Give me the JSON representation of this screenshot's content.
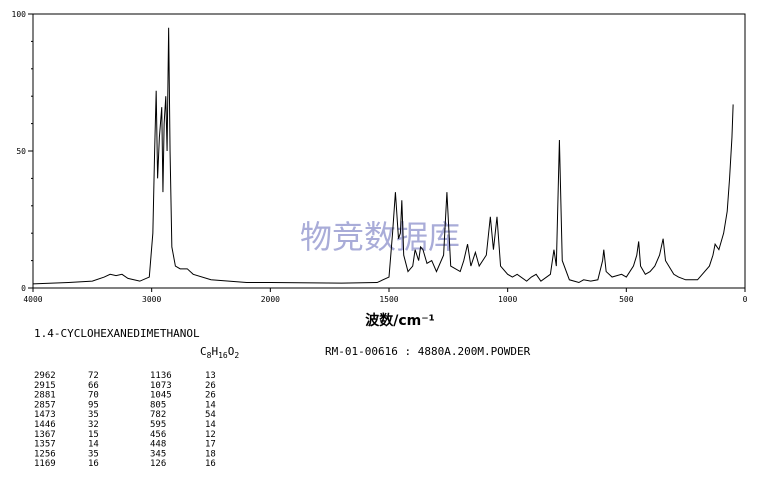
{
  "chart_data": {
    "type": "line",
    "xlabel": "波数/cm⁻¹",
    "watermark": "物竞数据库",
    "xlim": [
      4000,
      0
    ],
    "x_scale_change_at": 2000,
    "x_scale_ratio": 2,
    "ylim": [
      0,
      100
    ],
    "xticks": [
      4000,
      3000,
      2000,
      1500,
      1000,
      500,
      0
    ],
    "yticks": [
      0,
      50,
      100
    ],
    "yminorticks": [
      10,
      20,
      30,
      40,
      60,
      70,
      80,
      90
    ],
    "color": "#000000",
    "series": [
      {
        "x": [
          4000,
          3700,
          3500,
          3400,
          3350,
          3300,
          3250,
          3200,
          3100,
          3020,
          2990,
          2975,
          2962,
          2950,
          2935,
          2915,
          2905,
          2895,
          2881,
          2870,
          2857,
          2845,
          2830,
          2800,
          2760,
          2700,
          2650,
          2500,
          2200,
          2000,
          1700,
          1550,
          1500,
          1485,
          1473,
          1460,
          1452,
          1446,
          1438,
          1420,
          1400,
          1390,
          1375,
          1367,
          1357,
          1340,
          1320,
          1300,
          1270,
          1256,
          1240,
          1200,
          1185,
          1169,
          1155,
          1136,
          1120,
          1090,
          1073,
          1060,
          1045,
          1030,
          1000,
          980,
          960,
          920,
          900,
          880,
          860,
          820,
          805,
          795,
          782,
          770,
          740,
          700,
          680,
          650,
          620,
          600,
          595,
          585,
          560,
          520,
          500,
          470,
          456,
          448,
          440,
          420,
          400,
          380,
          360,
          345,
          335,
          300,
          280,
          250,
          200,
          150,
          135,
          126,
          110,
          90,
          75,
          65,
          55,
          50
        ],
        "values": [
          1.5,
          2,
          2.5,
          4,
          5,
          4.5,
          5,
          3.5,
          2.5,
          4,
          20,
          50,
          72,
          40,
          55,
          66,
          35,
          60,
          70,
          50,
          95,
          50,
          15,
          8,
          7,
          7,
          5,
          3,
          2,
          2,
          1.8,
          2,
          4,
          20,
          35,
          18,
          20,
          32,
          12,
          6,
          8,
          14,
          10,
          15,
          14,
          9,
          10,
          6,
          12,
          35,
          8,
          6,
          10,
          16,
          8,
          13,
          8,
          12,
          26,
          14,
          26,
          8,
          5,
          4,
          5,
          2.5,
          4,
          5,
          2.5,
          5,
          14,
          8,
          54,
          10,
          3,
          2,
          3,
          2.5,
          3,
          10,
          14,
          6,
          4,
          5,
          4,
          8,
          12,
          17,
          8,
          5,
          6,
          8,
          12,
          18,
          10,
          5,
          4,
          3,
          3,
          8,
          12,
          16,
          14,
          20,
          28,
          40,
          55,
          67
        ]
      }
    ],
    "compound": "1.4-CYCLOHEXANEDIMETHANOL",
    "formula": [
      "C",
      "8",
      "H",
      "16",
      "O",
      "2"
    ],
    "sample": "RM-01-00616 : 4880A.200M.POWDER",
    "peaks": [
      [
        [
          "2962",
          "72"
        ],
        [
          "2915",
          "66"
        ],
        [
          "2881",
          "70"
        ],
        [
          "2857",
          "95"
        ],
        [
          "1473",
          "35"
        ],
        [
          "1446",
          "32"
        ],
        [
          "1367",
          "15"
        ],
        [
          "1357",
          "14"
        ],
        [
          "1256",
          "35"
        ],
        [
          "1169",
          "16"
        ]
      ],
      [
        [
          "1136",
          "13"
        ],
        [
          "1073",
          "26"
        ],
        [
          "1045",
          "26"
        ],
        [
          "805",
          "14"
        ],
        [
          "782",
          "54"
        ],
        [
          "595",
          "14"
        ],
        [
          "456",
          "12"
        ],
        [
          "448",
          "17"
        ],
        [
          "345",
          "18"
        ],
        [
          "126",
          "16"
        ]
      ]
    ]
  }
}
